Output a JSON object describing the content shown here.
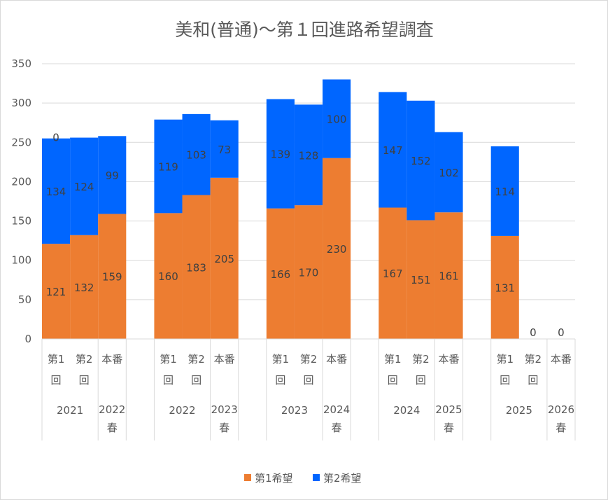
{
  "chart_data": {
    "type": "bar",
    "stacked": true,
    "title": "美和(普通)～第１回進路希望調査",
    "ylim": [
      0,
      350
    ],
    "yticks": [
      0,
      50,
      100,
      150,
      200,
      250,
      300,
      350
    ],
    "grid": true,
    "legend_position": "bottom",
    "groups": [
      {
        "year": "2021",
        "final_label": "2022春"
      },
      {
        "year": "2022",
        "final_label": "2023春"
      },
      {
        "year": "2023",
        "final_label": "2024春"
      },
      {
        "year": "2024",
        "final_label": "2025春"
      },
      {
        "year": "2025",
        "final_label": "2026春"
      }
    ],
    "subcategories": [
      "第1回",
      "第2回",
      "本番"
    ],
    "series": [
      {
        "name": "第1希望",
        "color": "#ED7D31",
        "values": [
          121,
          132,
          159,
          160,
          183,
          205,
          166,
          170,
          230,
          167,
          151,
          161,
          131,
          0,
          0
        ]
      },
      {
        "name": "第2希望",
        "color": "#0066FF",
        "values": [
          134,
          124,
          99,
          119,
          103,
          73,
          139,
          128,
          100,
          147,
          152,
          102,
          114,
          null,
          null
        ]
      }
    ],
    "extra_labels": [
      {
        "index": 0,
        "text": "0"
      }
    ]
  }
}
